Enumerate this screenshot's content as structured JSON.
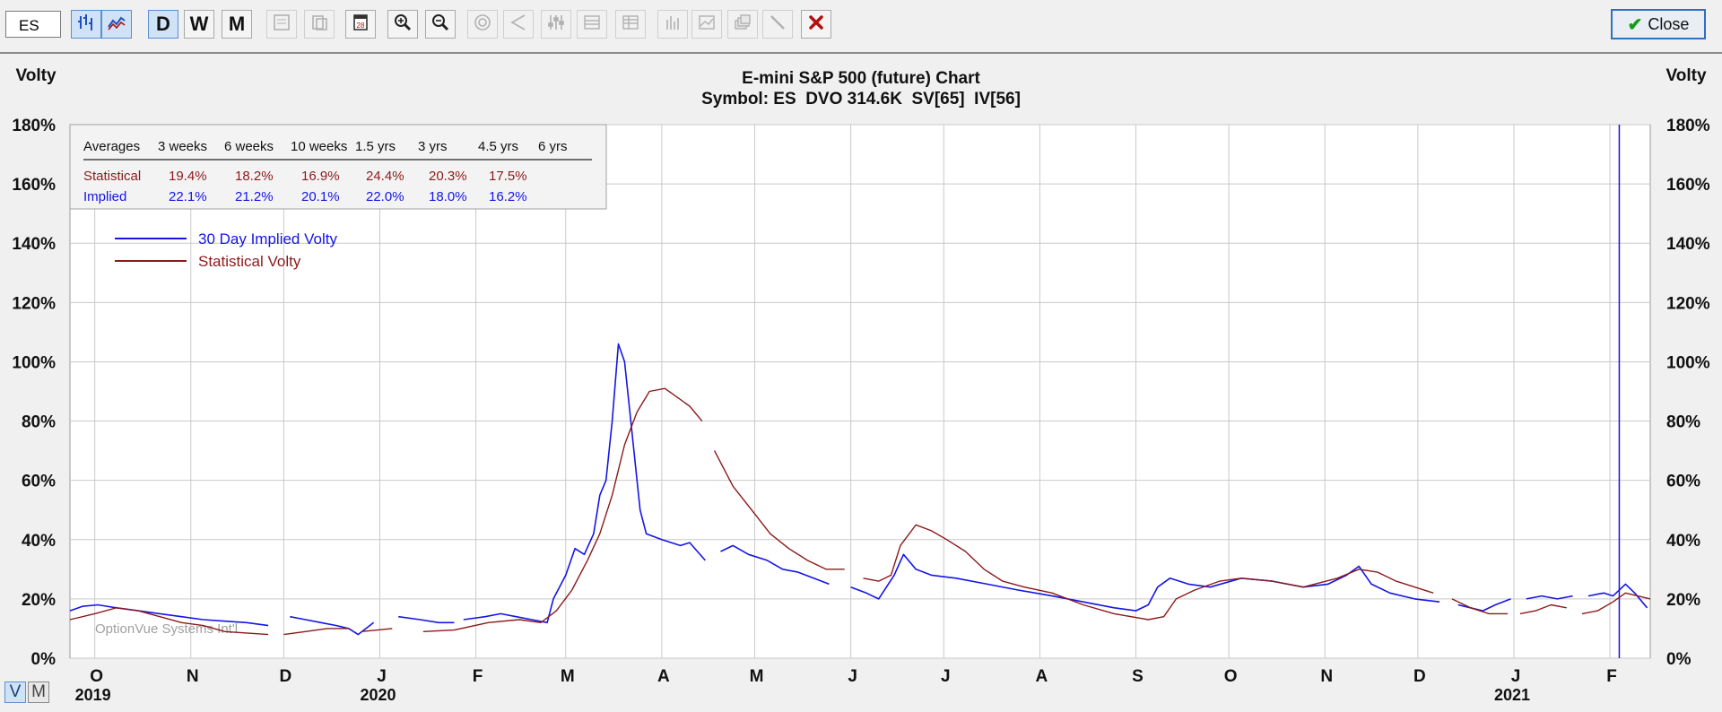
{
  "toolbar": {
    "symbol_value": "ES",
    "buttons": [
      {
        "name": "bar-chart-icon",
        "active": true
      },
      {
        "name": "line-chart-icon",
        "active": true
      },
      {
        "name": "daily-button",
        "label": "D",
        "active": true
      },
      {
        "name": "weekly-button",
        "label": "W"
      },
      {
        "name": "monthly-button",
        "label": "M"
      },
      {
        "name": "tool1-icon",
        "disabled": true
      },
      {
        "name": "tool2-icon",
        "disabled": true
      },
      {
        "name": "calendar-icon"
      },
      {
        "name": "zoom-in-icon"
      },
      {
        "name": "zoom-out-icon"
      },
      {
        "name": "target-icon",
        "disabled": true
      },
      {
        "name": "pointer-icon",
        "disabled": true
      },
      {
        "name": "sliders-icon",
        "disabled": true
      },
      {
        "name": "grid-icon",
        "disabled": true
      },
      {
        "name": "grid2-icon",
        "disabled": true
      },
      {
        "name": "bars-icon",
        "disabled": true
      },
      {
        "name": "chart-icon",
        "disabled": true
      },
      {
        "name": "layers-icon",
        "disabled": true
      },
      {
        "name": "pen-icon",
        "disabled": true
      },
      {
        "name": "delete-icon",
        "color": "#b01010"
      }
    ],
    "close_label": "Close"
  },
  "colors": {
    "implied": "#1515e6",
    "statistical": "#8b1a1a",
    "grid": "#c9c9c9",
    "text": "#111111"
  },
  "chart_data": {
    "type": "line",
    "title": "E-mini S&P 500 (future) Chart",
    "subtitle": "Symbol: ES  DVO 314.6K  SV[65]  IV[56]",
    "ylabel": "Volty",
    "ylim": [
      0,
      180
    ],
    "y_ticks": [
      "0%",
      "20%",
      "40%",
      "60%",
      "80%",
      "100%",
      "120%",
      "140%",
      "160%",
      "180%"
    ],
    "grid": true,
    "legend_position": "top-left",
    "watermark": "OptionVue Systems Int'l",
    "x_start": "2019-09-23",
    "x_end": "2021-02-14",
    "month_ticks": [
      {
        "date": "2019-10-01",
        "label": "O",
        "year": "2019"
      },
      {
        "date": "2019-11-01",
        "label": "N"
      },
      {
        "date": "2019-12-01",
        "label": "D"
      },
      {
        "date": "2020-01-01",
        "label": "J",
        "year": "2020"
      },
      {
        "date": "2020-02-01",
        "label": "F"
      },
      {
        "date": "2020-03-01",
        "label": "M"
      },
      {
        "date": "2020-04-01",
        "label": "A"
      },
      {
        "date": "2020-05-01",
        "label": "M"
      },
      {
        "date": "2020-06-01",
        "label": "J"
      },
      {
        "date": "2020-07-01",
        "label": "J"
      },
      {
        "date": "2020-08-01",
        "label": "A"
      },
      {
        "date": "2020-09-01",
        "label": "S"
      },
      {
        "date": "2020-10-01",
        "label": "O"
      },
      {
        "date": "2020-11-01",
        "label": "N"
      },
      {
        "date": "2020-12-01",
        "label": "D"
      },
      {
        "date": "2021-01-01",
        "label": "J",
        "year": "2021"
      },
      {
        "date": "2021-02-01",
        "label": "F"
      }
    ],
    "current_date_marker": "2021-02-04",
    "series": [
      {
        "name": "30 Day Implied Volty",
        "color": "#1515e6",
        "segments": [
          [
            [
              "2019-09-23",
              16
            ],
            [
              "2019-09-27",
              17.5
            ],
            [
              "2019-10-02",
              18
            ],
            [
              "2019-10-08",
              17
            ],
            [
              "2019-10-15",
              16
            ],
            [
              "2019-10-22",
              15
            ],
            [
              "2019-10-29",
              14
            ],
            [
              "2019-11-05",
              13
            ],
            [
              "2019-11-12",
              12.5
            ],
            [
              "2019-11-19",
              12
            ],
            [
              "2019-11-26",
              11
            ]
          ],
          [
            [
              "2019-12-03",
              14
            ],
            [
              "2019-12-08",
              13
            ],
            [
              "2019-12-13",
              12
            ],
            [
              "2019-12-18",
              11
            ],
            [
              "2019-12-22",
              10
            ],
            [
              "2019-12-25",
              8
            ],
            [
              "2019-12-30",
              12
            ]
          ],
          [
            [
              "2020-01-07",
              14
            ],
            [
              "2020-01-14",
              13
            ],
            [
              "2020-01-20",
              12
            ],
            [
              "2020-01-25",
              12
            ]
          ],
          [
            [
              "2020-01-28",
              13
            ],
            [
              "2020-02-04",
              14
            ],
            [
              "2020-02-09",
              15
            ],
            [
              "2020-02-14",
              14
            ],
            [
              "2020-02-19",
              13
            ],
            [
              "2020-02-24",
              12
            ],
            [
              "2020-02-26",
              20
            ],
            [
              "2020-03-01",
              28
            ],
            [
              "2020-03-04",
              37
            ],
            [
              "2020-03-07",
              35
            ],
            [
              "2020-03-10",
              42
            ],
            [
              "2020-03-12",
              55
            ],
            [
              "2020-03-14",
              60
            ],
            [
              "2020-03-16",
              80
            ],
            [
              "2020-03-18",
              106
            ],
            [
              "2020-03-20",
              100
            ],
            [
              "2020-03-23",
              70
            ],
            [
              "2020-03-25",
              50
            ],
            [
              "2020-03-27",
              42
            ],
            [
              "2020-04-01",
              40
            ],
            [
              "2020-04-07",
              38
            ],
            [
              "2020-04-10",
              39
            ],
            [
              "2020-04-15",
              33
            ]
          ],
          [
            [
              "2020-04-20",
              36
            ],
            [
              "2020-04-24",
              38
            ],
            [
              "2020-04-29",
              35
            ],
            [
              "2020-05-05",
              33
            ],
            [
              "2020-05-10",
              30
            ],
            [
              "2020-05-15",
              29
            ],
            [
              "2020-05-20",
              27
            ],
            [
              "2020-05-25",
              25
            ]
          ],
          [
            [
              "2020-06-01",
              24
            ],
            [
              "2020-06-06",
              22
            ],
            [
              "2020-06-10",
              20
            ],
            [
              "2020-06-15",
              28
            ],
            [
              "2020-06-18",
              35
            ],
            [
              "2020-06-22",
              30
            ],
            [
              "2020-06-27",
              28
            ],
            [
              "2020-07-05",
              27
            ],
            [
              "2020-07-15",
              25
            ],
            [
              "2020-07-25",
              23
            ],
            [
              "2020-08-05",
              21
            ],
            [
              "2020-08-15",
              19
            ],
            [
              "2020-08-25",
              17
            ],
            [
              "2020-09-01",
              16
            ],
            [
              "2020-09-05",
              18
            ],
            [
              "2020-09-08",
              24
            ],
            [
              "2020-09-12",
              27
            ],
            [
              "2020-09-18",
              25
            ],
            [
              "2020-09-25",
              24
            ],
            [
              "2020-10-05",
              27
            ],
            [
              "2020-10-15",
              26
            ],
            [
              "2020-10-25",
              24
            ],
            [
              "2020-11-02",
              25
            ],
            [
              "2020-11-08",
              28
            ],
            [
              "2020-11-12",
              31
            ],
            [
              "2020-11-16",
              25
            ],
            [
              "2020-11-22",
              22
            ],
            [
              "2020-11-30",
              20
            ],
            [
              "2020-12-08",
              19
            ]
          ],
          [
            [
              "2020-12-14",
              18
            ],
            [
              "2020-12-18",
              17
            ],
            [
              "2020-12-22",
              16
            ],
            [
              "2020-12-26",
              18
            ],
            [
              "2020-12-31",
              20
            ]
          ],
          [
            [
              "2021-01-05",
              20
            ],
            [
              "2021-01-10",
              21
            ],
            [
              "2021-01-15",
              20
            ],
            [
              "2021-01-20",
              21
            ]
          ],
          [
            [
              "2021-01-25",
              21
            ],
            [
              "2021-01-30",
              22
            ],
            [
              "2021-02-02",
              21
            ],
            [
              "2021-02-06",
              25
            ],
            [
              "2021-02-09",
              22
            ],
            [
              "2021-02-13",
              17
            ]
          ]
        ]
      },
      {
        "name": "Statistical Volty",
        "color": "#8b1a1a",
        "segments": [
          [
            [
              "2019-09-23",
              13
            ],
            [
              "2019-10-01",
              15
            ],
            [
              "2019-10-08",
              17
            ],
            [
              "2019-10-15",
              16
            ],
            [
              "2019-10-22",
              14
            ],
            [
              "2019-10-29",
              12
            ],
            [
              "2019-11-05",
              11
            ],
            [
              "2019-11-12",
              9
            ],
            [
              "2019-11-19",
              8.5
            ],
            [
              "2019-11-26",
              8
            ]
          ],
          [
            [
              "2019-12-01",
              8
            ],
            [
              "2019-12-08",
              9
            ],
            [
              "2019-12-15",
              10
            ],
            [
              "2019-12-22",
              10
            ]
          ],
          [
            [
              "2019-12-26",
              9
            ],
            [
              "2020-01-05",
              10
            ]
          ],
          [
            [
              "2020-01-15",
              9
            ],
            [
              "2020-01-25",
              9.5
            ],
            [
              "2020-02-05",
              12
            ],
            [
              "2020-02-15",
              13
            ],
            [
              "2020-02-22",
              12
            ],
            [
              "2020-02-27",
              16
            ],
            [
              "2020-03-03",
              23
            ],
            [
              "2020-03-08",
              33
            ],
            [
              "2020-03-12",
              42
            ],
            [
              "2020-03-16",
              55
            ],
            [
              "2020-03-20",
              72
            ],
            [
              "2020-03-24",
              83
            ],
            [
              "2020-03-28",
              90
            ],
            [
              "2020-04-02",
              91
            ],
            [
              "2020-04-06",
              88
            ],
            [
              "2020-04-10",
              85
            ],
            [
              "2020-04-14",
              80
            ]
          ],
          [
            [
              "2020-04-18",
              70
            ],
            [
              "2020-04-24",
              58
            ],
            [
              "2020-04-30",
              50
            ],
            [
              "2020-05-06",
              42
            ],
            [
              "2020-05-12",
              37
            ],
            [
              "2020-05-18",
              33
            ],
            [
              "2020-05-24",
              30
            ],
            [
              "2020-05-30",
              30
            ]
          ],
          [
            [
              "2020-06-05",
              27
            ],
            [
              "2020-06-10",
              26
            ],
            [
              "2020-06-14",
              28
            ],
            [
              "2020-06-17",
              38
            ],
            [
              "2020-06-22",
              45
            ],
            [
              "2020-06-27",
              43
            ],
            [
              "2020-07-02",
              40
            ],
            [
              "2020-07-08",
              36
            ],
            [
              "2020-07-14",
              30
            ],
            [
              "2020-07-20",
              26
            ],
            [
              "2020-07-27",
              24
            ],
            [
              "2020-08-05",
              22
            ],
            [
              "2020-08-15",
              18
            ],
            [
              "2020-08-25",
              15
            ],
            [
              "2020-09-05",
              13
            ],
            [
              "2020-09-10",
              14
            ],
            [
              "2020-09-14",
              20
            ],
            [
              "2020-09-20",
              23
            ],
            [
              "2020-09-28",
              26
            ],
            [
              "2020-10-05",
              27
            ],
            [
              "2020-10-15",
              26
            ],
            [
              "2020-10-25",
              24
            ],
            [
              "2020-11-05",
              27
            ],
            [
              "2020-11-12",
              30
            ],
            [
              "2020-11-18",
              29
            ],
            [
              "2020-11-24",
              26
            ],
            [
              "2020-11-30",
              24
            ],
            [
              "2020-12-06",
              22
            ]
          ],
          [
            [
              "2020-12-12",
              20
            ],
            [
              "2020-12-18",
              17
            ],
            [
              "2020-12-24",
              15
            ],
            [
              "2020-12-30",
              15
            ]
          ],
          [
            [
              "2021-01-03",
              15
            ],
            [
              "2021-01-08",
              16
            ],
            [
              "2021-01-13",
              18
            ],
            [
              "2021-01-18",
              17
            ]
          ],
          [
            [
              "2021-01-23",
              15
            ],
            [
              "2021-01-28",
              16
            ],
            [
              "2021-02-02",
              19
            ],
            [
              "2021-02-06",
              22
            ],
            [
              "2021-02-10",
              21
            ],
            [
              "2021-02-14",
              20
            ]
          ]
        ]
      }
    ],
    "averages_table": {
      "headers": [
        "Averages",
        "3 weeks",
        "6 weeks",
        "10 weeks",
        "1.5 yrs",
        "3 yrs",
        "4.5 yrs",
        "6 yrs"
      ],
      "rows": [
        {
          "label": "Statistical",
          "color": "#8b1a1a",
          "values": [
            "19.4%",
            "18.2%",
            "16.9%",
            "24.4%",
            "20.3%",
            "17.5%",
            ""
          ]
        },
        {
          "label": "Implied",
          "color": "#1515e6",
          "values": [
            "22.1%",
            "21.2%",
            "20.1%",
            "22.0%",
            "18.0%",
            "16.2%",
            ""
          ]
        }
      ]
    }
  },
  "view_toggle": {
    "v_label": "V",
    "m_label": "M"
  }
}
